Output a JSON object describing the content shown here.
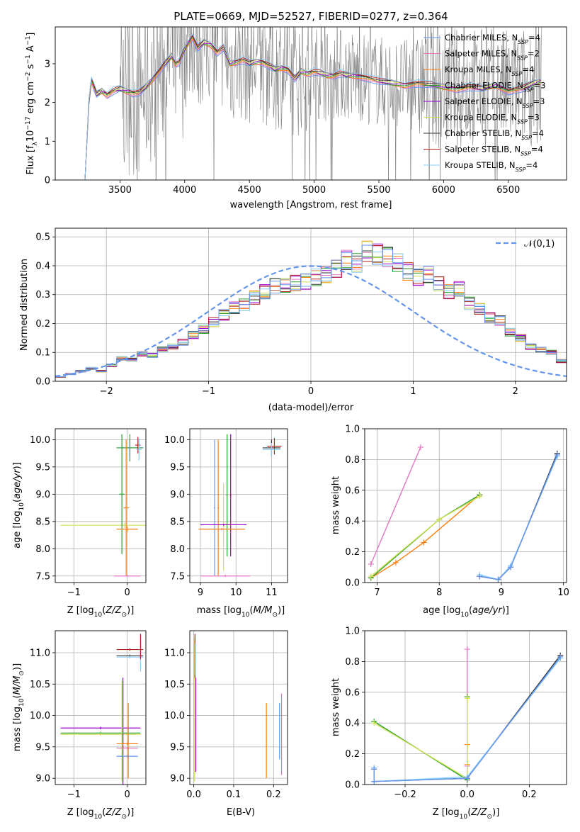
{
  "chart_data": [
    {
      "type": "line",
      "title": "PLATE=0669, MJD=52527, FIBERID=0277, z=0.364",
      "xlabel": "wavelength [Angstrom, rest frame]",
      "ylabel": "Flux [f_λ10^-17 erg cm^-2 s^-1 A^-1]",
      "xlim": [
        3000,
        6950
      ],
      "ylim": [
        0,
        3.95
      ],
      "xticks": [
        "3500",
        "4000",
        "4500",
        "5000",
        "5500",
        "6000",
        "6500"
      ],
      "yticks": [
        "0",
        "1",
        "2",
        "3"
      ],
      "legend_position": "upper-right",
      "series": [
        {
          "name": "Chabrier MILES, N_SSP=4",
          "color": "#6495ed"
        },
        {
          "name": "Salpeter MILES, N_SSP=2",
          "color": "#e377c2"
        },
        {
          "name": "Kroupa MILES, N_SSP=4",
          "color": "#ff7f0e"
        },
        {
          "name": "Chabrier ELODIE, N_SSP=3",
          "color": "#2ca02c"
        },
        {
          "name": "Salpeter ELODIE, N_SSP=3",
          "color": "#9400d3"
        },
        {
          "name": "Kroupa ELODIE, N_SSP=3",
          "color": "#d4e157"
        },
        {
          "name": "Chabrier STELIB, N_SSP=4",
          "color": "#333333"
        },
        {
          "name": "Salpeter STELIB, N_SSP=4",
          "color": "#b22222"
        },
        {
          "name": "Kroupa STELIB, N_SSP=4",
          "color": "#87cefa"
        }
      ],
      "data_color": "#808080",
      "model_x": [
        3230,
        3260,
        3280,
        3300,
        3320,
        3360,
        3400,
        3450,
        3500,
        3550,
        3600,
        3650,
        3700,
        3750,
        3800,
        3850,
        3900,
        3930,
        3960,
        3990,
        4020,
        4060,
        4100,
        4150,
        4200,
        4250,
        4300,
        4350,
        4400,
        4450,
        4500,
        4550,
        4600,
        4650,
        4700,
        4750,
        4800,
        4850,
        4900,
        4950,
        5000,
        5050,
        5100,
        5150,
        5200,
        5250,
        5300,
        5400,
        5500,
        5600,
        5700,
        5800,
        5900,
        6000,
        6100,
        6200,
        6300,
        6400,
        6500,
        6600,
        6700,
        6750
      ],
      "model_y": [
        0.0,
        2.0,
        2.6,
        2.4,
        2.2,
        2.3,
        2.2,
        2.3,
        2.35,
        2.3,
        2.25,
        2.25,
        2.4,
        2.6,
        2.8,
        3.0,
        3.2,
        3.0,
        3.05,
        3.3,
        3.5,
        3.7,
        3.4,
        3.55,
        3.5,
        3.3,
        3.4,
        3.0,
        3.05,
        3.1,
        3.0,
        3.05,
        3.05,
        2.95,
        2.85,
        2.9,
        2.85,
        2.6,
        2.8,
        2.75,
        2.8,
        2.75,
        2.7,
        2.7,
        2.75,
        2.7,
        2.7,
        2.65,
        2.55,
        2.5,
        2.45,
        2.5,
        2.45,
        2.4,
        2.35,
        2.4,
        2.35,
        2.45,
        2.3,
        2.35,
        2.5,
        2.55
      ]
    },
    {
      "type": "line",
      "xlabel": "(data-model)/error",
      "ylabel": "Normed distribution",
      "xlim": [
        -2.5,
        2.5
      ],
      "ylim": [
        0,
        0.53
      ],
      "xticks": [
        "−2",
        "−1",
        "0",
        "1",
        "2"
      ],
      "yticks": [
        "0.0",
        "0.1",
        "0.2",
        "0.3",
        "0.4",
        "0.5"
      ],
      "legend_position": "upper-right",
      "legend": "𝒩(0,1)",
      "gauss_color": "#6495ed",
      "bin_width": 0.1,
      "hist_x_start": -2.5,
      "hist_y": [
        0.015,
        0.025,
        0.035,
        0.045,
        0.035,
        0.055,
        0.08,
        0.075,
        0.095,
        0.09,
        0.11,
        0.12,
        0.135,
        0.16,
        0.18,
        0.205,
        0.23,
        0.255,
        0.265,
        0.29,
        0.31,
        0.33,
        0.33,
        0.34,
        0.345,
        0.36,
        0.37,
        0.39,
        0.42,
        0.41,
        0.45,
        0.44,
        0.43,
        0.41,
        0.38,
        0.36,
        0.37,
        0.34,
        0.31,
        0.32,
        0.27,
        0.25,
        0.22,
        0.21,
        0.17,
        0.15,
        0.12,
        0.11,
        0.1,
        0.07,
        0.065,
        0.05,
        0.045,
        0.03,
        0.03,
        0.025,
        0.02,
        0.015,
        0.012,
        0.01
      ]
    },
    {
      "type": "scatter",
      "xlabel": "Z [log10(Z/Z⊙)]",
      "ylabel": "age [log10(age/yr)]",
      "xlim": [
        -1.35,
        0.35
      ],
      "ylim": [
        7.38,
        10.2
      ],
      "xticks": [
        "−1",
        "0"
      ],
      "yticks": [
        "7.5",
        "8.0",
        "8.5",
        "9.0",
        "9.5",
        "10.0"
      ],
      "crosses": [
        {
          "x": 0.05,
          "y": 9.85,
          "xerr": 0.25,
          "yerr": 0.15,
          "color": "#6495ed"
        },
        {
          "x": 0.05,
          "y": 9.85,
          "xerr": 0.25,
          "yerr": 0.25,
          "color": "#2ca02c"
        },
        {
          "x": -0.05,
          "y": 8.43,
          "xerr": 1.2,
          "yerr": 0.05,
          "color": "#d4e157"
        },
        {
          "x": -0.1,
          "y": 9.0,
          "xerr": 0.05,
          "yerr": 1.1,
          "color": "#2ca02c"
        },
        {
          "x": -0.02,
          "y": 8.75,
          "xerr": 0.05,
          "yerr": 1.25,
          "color": "#ff7f0e"
        },
        {
          "x": 0.0,
          "y": 8.36,
          "xerr": 0.2,
          "yerr": 0.05,
          "color": "#ff7f0e"
        },
        {
          "x": 0.0,
          "y": 7.5,
          "xerr": 0.25,
          "yerr": 0.02,
          "color": "#e377c2"
        },
        {
          "x": 0.2,
          "y": 9.9,
          "xerr": 0.05,
          "yerr": 0.15,
          "color": "#b22222"
        },
        {
          "x": 0.22,
          "y": 9.82,
          "xerr": 0.05,
          "yerr": 0.2,
          "color": "#87cefa"
        }
      ]
    },
    {
      "type": "scatter",
      "xlabel": "mass [log10(M/M⊙)]",
      "xlim": [
        8.7,
        11.45
      ],
      "ylim": [
        7.38,
        10.2
      ],
      "xticks": [
        "9",
        "10",
        "11"
      ],
      "yticks": [
        "7.5",
        "8.0",
        "8.5",
        "9.0",
        "9.5",
        "10.0"
      ],
      "crosses": [
        {
          "x": 9.4,
          "y": 8.75,
          "xerr": 0.02,
          "yerr": 1.25,
          "color": "#6495ed"
        },
        {
          "x": 9.5,
          "y": 8.75,
          "xerr": 0.02,
          "yerr": 1.25,
          "color": "#ff7f0e"
        },
        {
          "x": 9.65,
          "y": 8.4,
          "xerr": 0.02,
          "yerr": 0.8,
          "color": "#d4e157"
        },
        {
          "x": 9.75,
          "y": 8.98,
          "xerr": 0.02,
          "yerr": 1.12,
          "color": "#2ca02c"
        },
        {
          "x": 9.85,
          "y": 8.98,
          "xerr": 0.02,
          "yerr": 1.12,
          "color": "#9400d3"
        },
        {
          "x": 9.65,
          "y": 8.44,
          "xerr": 0.65,
          "yerr": 0.02,
          "color": "#9400d3"
        },
        {
          "x": 9.6,
          "y": 8.36,
          "xerr": 0.65,
          "yerr": 0.02,
          "color": "#ff7f0e"
        },
        {
          "x": 9.7,
          "y": 7.5,
          "xerr": 0.7,
          "yerr": 0.02,
          "color": "#e377c2"
        },
        {
          "x": 11.0,
          "y": 9.85,
          "xerr": 0.25,
          "yerr": 0.15,
          "color": "#333333"
        },
        {
          "x": 11.08,
          "y": 9.88,
          "xerr": 0.2,
          "yerr": 0.15,
          "color": "#b22222"
        },
        {
          "x": 11.0,
          "y": 9.82,
          "xerr": 0.25,
          "yerr": 0.12,
          "color": "#87cefa"
        }
      ]
    },
    {
      "type": "line",
      "xlabel": "age [log10(age/yr)]",
      "ylabel": "mass weight",
      "xlim": [
        6.8,
        10.05
      ],
      "ylim": [
        0,
        1.0
      ],
      "xticks": [
        "7",
        "8",
        "9",
        "10"
      ],
      "yticks": [
        "0.0",
        "0.2",
        "0.4",
        "0.6",
        "0.8",
        "1.0"
      ],
      "series": [
        {
          "color": "#e377c2",
          "x": [
            6.9,
            7.7
          ],
          "y": [
            0.12,
            0.88
          ]
        },
        {
          "color": "#ff7f0e",
          "x": [
            6.9,
            7.3,
            7.75,
            8.65
          ],
          "y": [
            0.03,
            0.13,
            0.26,
            0.57
          ]
        },
        {
          "color": "#2ca02c",
          "x": [
            6.9,
            8.0,
            8.65
          ],
          "y": [
            0.03,
            0.41,
            0.57
          ]
        },
        {
          "color": "#d4e157",
          "x": [
            6.9,
            8.0,
            8.65
          ],
          "y": [
            0.04,
            0.41,
            0.56
          ]
        },
        {
          "color": "#333333",
          "x": [
            8.65,
            8.95,
            9.15,
            9.9
          ],
          "y": [
            0.04,
            0.02,
            0.1,
            0.84
          ]
        },
        {
          "color": "#87cefa",
          "x": [
            8.65,
            8.95,
            9.15,
            9.9
          ],
          "y": [
            0.05,
            0.02,
            0.11,
            0.82
          ]
        },
        {
          "color": "#6495ed",
          "x": [
            8.65,
            8.95,
            9.15,
            9.9
          ],
          "y": [
            0.04,
            0.02,
            0.1,
            0.83
          ]
        }
      ]
    },
    {
      "type": "scatter",
      "xlabel": "Z [log10(Z/Z⊙)]",
      "ylabel": "mass [log10(M/M⊙)]",
      "xlim": [
        -1.35,
        0.35
      ],
      "ylim": [
        8.9,
        11.35
      ],
      "xticks": [
        "−1",
        "0"
      ],
      "yticks": [
        "9.0",
        "9.5",
        "10.0",
        "10.5",
        "11.0"
      ],
      "crosses": [
        {
          "x": 0.05,
          "y": 11.05,
          "xerr": 0.25,
          "yerr": 0.02,
          "color": "#b22222"
        },
        {
          "x": 0.05,
          "y": 10.95,
          "xerr": 0.25,
          "yerr": 0.02,
          "color": "#333333"
        },
        {
          "x": 0.05,
          "y": 10.93,
          "xerr": 0.25,
          "yerr": 0.02,
          "color": "#87cefa"
        },
        {
          "x": 0.25,
          "y": 11.0,
          "xerr": 0.01,
          "yerr": 0.3,
          "color": "#87cefa"
        },
        {
          "x": 0.25,
          "y": 11.1,
          "xerr": 0.01,
          "yerr": 0.2,
          "color": "#b22222"
        },
        {
          "x": -0.5,
          "y": 9.8,
          "xerr": 0.75,
          "yerr": 0.02,
          "color": "#9400d3"
        },
        {
          "x": -0.5,
          "y": 9.72,
          "xerr": 0.75,
          "yerr": 0.02,
          "color": "#2ca02c"
        },
        {
          "x": -0.5,
          "y": 9.7,
          "xerr": 0.75,
          "yerr": 0.02,
          "color": "#d4e157"
        },
        {
          "x": -0.08,
          "y": 9.75,
          "xerr": 0.01,
          "yerr": 0.85,
          "color": "#9400d3"
        },
        {
          "x": -0.1,
          "y": 9.75,
          "xerr": 0.01,
          "yerr": 0.8,
          "color": "#d4e157"
        },
        {
          "x": 0.0,
          "y": 9.55,
          "xerr": 0.2,
          "yerr": 0.02,
          "color": "#ff7f0e"
        },
        {
          "x": 0.0,
          "y": 9.48,
          "xerr": 0.2,
          "yerr": 0.02,
          "color": "#e377c2"
        },
        {
          "x": 0.0,
          "y": 9.35,
          "xerr": 0.2,
          "yerr": 0.02,
          "color": "#6495ed"
        },
        {
          "x": 0.02,
          "y": 9.6,
          "xerr": 0.01,
          "yerr": 0.6,
          "color": "#ff7f0e"
        }
      ]
    },
    {
      "type": "scatter",
      "xlabel": "E(B-V)",
      "xlim": [
        -0.01,
        0.235
      ],
      "ylim": [
        8.9,
        11.35
      ],
      "xticks": [
        "0.0",
        "0.1",
        "0.2"
      ],
      "yticks": [
        "9.0",
        "9.5",
        "10.0",
        "10.5",
        "11.0"
      ],
      "crosses": [
        {
          "x": 0.002,
          "y": 10.1,
          "xerr": 0.001,
          "yerr": 1.15,
          "color": "#d4e157"
        },
        {
          "x": 0.003,
          "y": 10.95,
          "xerr": 0.001,
          "yerr": 0.35,
          "color": "#b22222"
        },
        {
          "x": 0.004,
          "y": 10.9,
          "xerr": 0.001,
          "yerr": 0.25,
          "color": "#87cefa"
        },
        {
          "x": 0.005,
          "y": 9.85,
          "xerr": 0.001,
          "yerr": 0.75,
          "color": "#9400d3"
        },
        {
          "x": 0.182,
          "y": 9.6,
          "xerr": 0.001,
          "yerr": 0.6,
          "color": "#ff7f0e"
        },
        {
          "x": 0.215,
          "y": 9.75,
          "xerr": 0.001,
          "yerr": 0.45,
          "color": "#6495ed"
        },
        {
          "x": 0.22,
          "y": 9.7,
          "xerr": 0.001,
          "yerr": 0.65,
          "color": "#e377c2"
        }
      ]
    },
    {
      "type": "line",
      "xlabel": "Z [log10(Z/Z⊙)]",
      "ylabel": "mass weight",
      "xlim": [
        -0.33,
        0.32
      ],
      "ylim": [
        0,
        1.0
      ],
      "xticks": [
        "−0.2",
        "0.0",
        "0.2"
      ],
      "yticks": [
        "0.0",
        "0.2",
        "0.4",
        "0.6",
        "0.8",
        "1.0"
      ],
      "series": [
        {
          "color": "#e377c2",
          "x": [
            0.0,
            0.0
          ],
          "y": [
            0.12,
            0.88
          ]
        },
        {
          "color": "#ff7f0e",
          "x": [
            0.0,
            0.0,
            0.0,
            0.0
          ],
          "y": [
            0.03,
            0.13,
            0.26,
            0.57
          ]
        },
        {
          "color": "#2ca02c",
          "x": [
            -0.3,
            0.0,
            0.0
          ],
          "y": [
            0.41,
            0.03,
            0.57
          ]
        },
        {
          "color": "#d4e157",
          "x": [
            -0.3,
            0.0,
            0.0
          ],
          "y": [
            0.4,
            0.04,
            0.56
          ]
        },
        {
          "color": "#333333",
          "x": [
            -0.3,
            -0.3,
            0.0,
            0.3
          ],
          "y": [
            0.1,
            0.02,
            0.04,
            0.84
          ]
        },
        {
          "color": "#87cefa",
          "x": [
            -0.3,
            -0.3,
            0.0,
            0.3
          ],
          "y": [
            0.11,
            0.02,
            0.05,
            0.82
          ]
        },
        {
          "color": "#6495ed",
          "x": [
            -0.3,
            -0.3,
            0.0,
            0.3
          ],
          "y": [
            0.1,
            0.02,
            0.04,
            0.83
          ]
        }
      ]
    }
  ]
}
